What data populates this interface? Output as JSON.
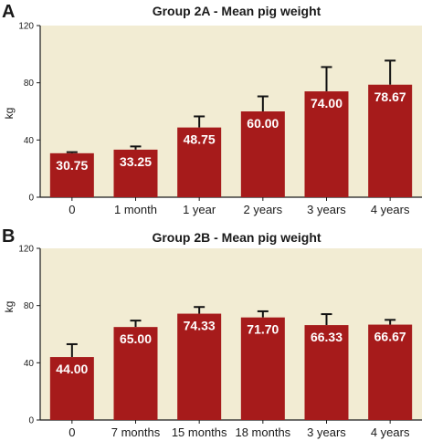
{
  "colors": {
    "bar": "#a61b1b",
    "plot_bg": "#f2ecd3",
    "axis": "#1a1a1a",
    "bar_label": "#ffffff"
  },
  "chart_data": [
    {
      "panel_letter": "A",
      "type": "bar",
      "title": "Group 2A - Mean pig weight",
      "xlabel": "",
      "ylabel": "kg",
      "ylim": [
        0,
        120
      ],
      "yticks": [
        0,
        40,
        80,
        120
      ],
      "grid": false,
      "categories": [
        "0",
        "1 month",
        "1 year",
        "2 years",
        "3 years",
        "4 years"
      ],
      "values": [
        30.75,
        33.25,
        48.75,
        60.0,
        74.0,
        78.67
      ],
      "value_labels": [
        "30.75",
        "33.25",
        "48.75",
        "60.00",
        "74.00",
        "78.67"
      ],
      "error_upper": [
        31.5,
        35.5,
        56.5,
        70.5,
        91.0,
        95.5
      ]
    },
    {
      "panel_letter": "B",
      "type": "bar",
      "title": "Group 2B - Mean pig weight",
      "xlabel": "",
      "ylabel": "kg",
      "ylim": [
        0,
        120
      ],
      "yticks": [
        0,
        40,
        80,
        120
      ],
      "grid": false,
      "categories": [
        "0",
        "7 months",
        "15 months",
        "18 months",
        "3 years",
        "4 years"
      ],
      "values": [
        44.0,
        65.0,
        74.33,
        71.7,
        66.33,
        66.67
      ],
      "value_labels": [
        "44.00",
        "65.00",
        "74.33",
        "71.70",
        "66.33",
        "66.67"
      ],
      "error_upper": [
        53.0,
        69.5,
        79.0,
        76.0,
        74.0,
        70.0
      ]
    }
  ]
}
